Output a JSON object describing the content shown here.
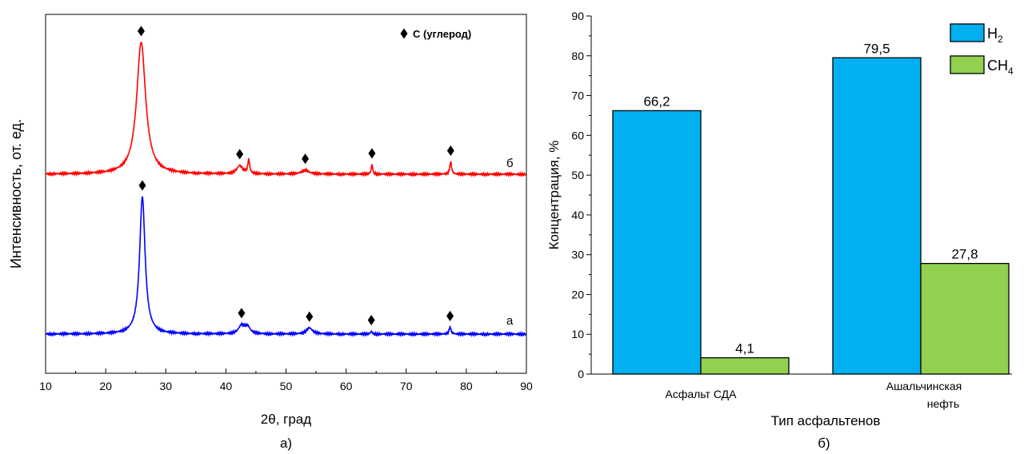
{
  "chart_data": [
    {
      "type": "line",
      "caption": "а)",
      "xlabel": "2θ, град",
      "ylabel": "Интенсивность, от. ед.",
      "xlim": [
        10,
        90
      ],
      "xticks": [
        "10",
        "20",
        "30",
        "40",
        "50",
        "60",
        "70",
        "80",
        "90"
      ],
      "legend": {
        "marker": "♦",
        "label": "C (углерод)",
        "position": "top-right"
      },
      "series": [
        {
          "name": "б",
          "color": "#ff0000",
          "baseline": 0.0,
          "peaks": [
            {
              "x": 25.9,
              "h": 0.96,
              "w": 0.9
            },
            {
              "x": 42.3,
              "h": 0.06,
              "w": 0.6
            },
            {
              "x": 43.8,
              "h": 0.1,
              "w": 0.18
            },
            {
              "x": 53.2,
              "h": 0.03,
              "w": 0.7
            },
            {
              "x": 64.3,
              "h": 0.07,
              "w": 0.15
            },
            {
              "x": 77.4,
              "h": 0.09,
              "w": 0.18
            }
          ],
          "markers_x": [
            25.9,
            42.3,
            53.2,
            64.3,
            77.4
          ]
        },
        {
          "name": "а",
          "color": "#0000ff",
          "baseline": 0.0,
          "peaks": [
            {
              "x": 26.1,
              "h": 1.0,
              "w": 0.55
            },
            {
              "x": 42.6,
              "h": 0.06,
              "w": 0.6
            },
            {
              "x": 43.6,
              "h": 0.05,
              "w": 0.5
            },
            {
              "x": 53.9,
              "h": 0.045,
              "w": 0.6
            },
            {
              "x": 64.2,
              "h": 0.02,
              "w": 0.15
            },
            {
              "x": 77.3,
              "h": 0.05,
              "w": 0.2
            }
          ],
          "markers_x": [
            26.1,
            42.6,
            53.9,
            64.2,
            77.3
          ]
        }
      ]
    },
    {
      "type": "bar",
      "caption": "б)",
      "xlabel": "Тип асфальтенов",
      "ylabel": "Концентрация, %",
      "ylim": [
        0,
        90
      ],
      "yticks": [
        "0",
        "10",
        "20",
        "30",
        "40",
        "50",
        "60",
        "70",
        "80",
        "90"
      ],
      "categories": [
        [
          "Асфальт СДА"
        ],
        [
          "Ашальчинская",
          "нефть"
        ]
      ],
      "series": [
        {
          "name": "H",
          "sub": "2",
          "color": "#00b0f0",
          "values": [
            66.2,
            79.5
          ],
          "labels": [
            "66,2",
            "79,5"
          ]
        },
        {
          "name": "CH",
          "sub": "4",
          "color": "#92d050",
          "values": [
            4.1,
            27.8
          ],
          "labels": [
            "4,1",
            "27,8"
          ]
        }
      ],
      "legend_position": "top-right"
    }
  ]
}
